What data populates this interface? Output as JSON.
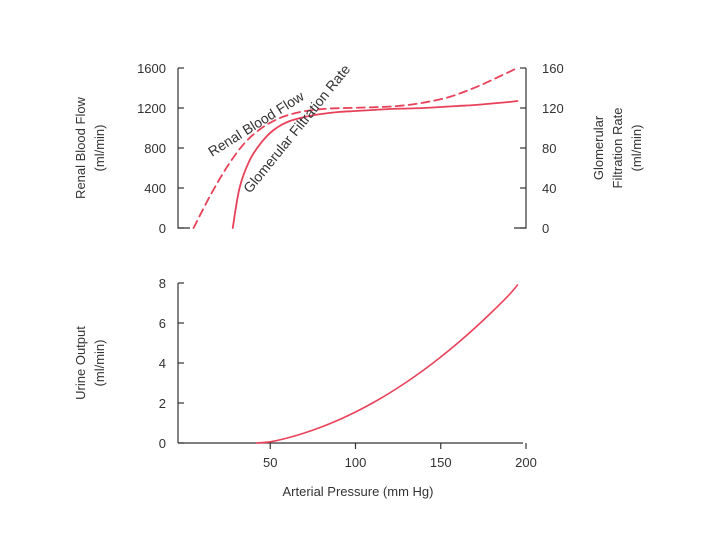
{
  "chart_data": [
    {
      "type": "line",
      "xlim": [
        0,
        200
      ],
      "xticks": [
        50,
        100,
        150,
        200
      ],
      "ylim": [
        0,
        1600
      ],
      "yticks": [
        0,
        400,
        800,
        1200,
        1600
      ],
      "ylabel": "Renal Blood Flow",
      "ylabel_unit": "(ml/min)",
      "y2lim": [
        0,
        160
      ],
      "y2ticks": [
        0,
        40,
        80,
        120,
        160
      ],
      "y2label": "Glomerular",
      "y2label_2": "Filtration Rate",
      "y2label_unit": "(ml/min)",
      "grid": false,
      "series": [
        {
          "name": "Renal Blood Flow",
          "axis": "left",
          "style": "dashed",
          "color": "#e8425a",
          "x": [
            5,
            15,
            25,
            35,
            45,
            55,
            65,
            75,
            85,
            95,
            105,
            115,
            125,
            135,
            145,
            155,
            165,
            175,
            185,
            195
          ],
          "y": [
            0,
            330,
            620,
            850,
            1000,
            1095,
            1150,
            1180,
            1195,
            1200,
            1205,
            1210,
            1220,
            1240,
            1270,
            1310,
            1370,
            1440,
            1520,
            1600
          ]
        },
        {
          "name": "Glomerular Filtration Rate",
          "axis": "right",
          "style": "solid",
          "color": "#e8425a",
          "x": [
            28,
            32,
            38,
            45,
            52,
            60,
            70,
            80,
            90,
            100,
            110,
            120,
            130,
            140,
            150,
            160,
            170,
            180,
            190,
            195
          ],
          "y": [
            0,
            40,
            68,
            86,
            98,
            106,
            111,
            114,
            116,
            117,
            118,
            119,
            119.5,
            120,
            121,
            122,
            123,
            124.5,
            126,
            127
          ]
        }
      ]
    },
    {
      "type": "line",
      "xlim": [
        0,
        200
      ],
      "xticks": [
        50,
        100,
        150,
        200
      ],
      "ylim": [
        0,
        8
      ],
      "yticks": [
        0,
        2,
        4,
        6,
        8
      ],
      "ylabel": "Urine Output",
      "ylabel_unit": "(ml/min)",
      "xlabel": "Arterial Pressure (mm Hg)",
      "grid": false,
      "series": [
        {
          "axis": "left",
          "style": "solid",
          "color": "#e8425a",
          "x": [
            42,
            50,
            60,
            70,
            80,
            90,
            100,
            110,
            120,
            130,
            140,
            150,
            160,
            170,
            180,
            190,
            195
          ],
          "y": [
            0,
            0.06,
            0.25,
            0.5,
            0.8,
            1.15,
            1.55,
            2.0,
            2.5,
            3.05,
            3.65,
            4.3,
            5.0,
            5.75,
            6.55,
            7.4,
            7.9
          ]
        }
      ]
    }
  ]
}
